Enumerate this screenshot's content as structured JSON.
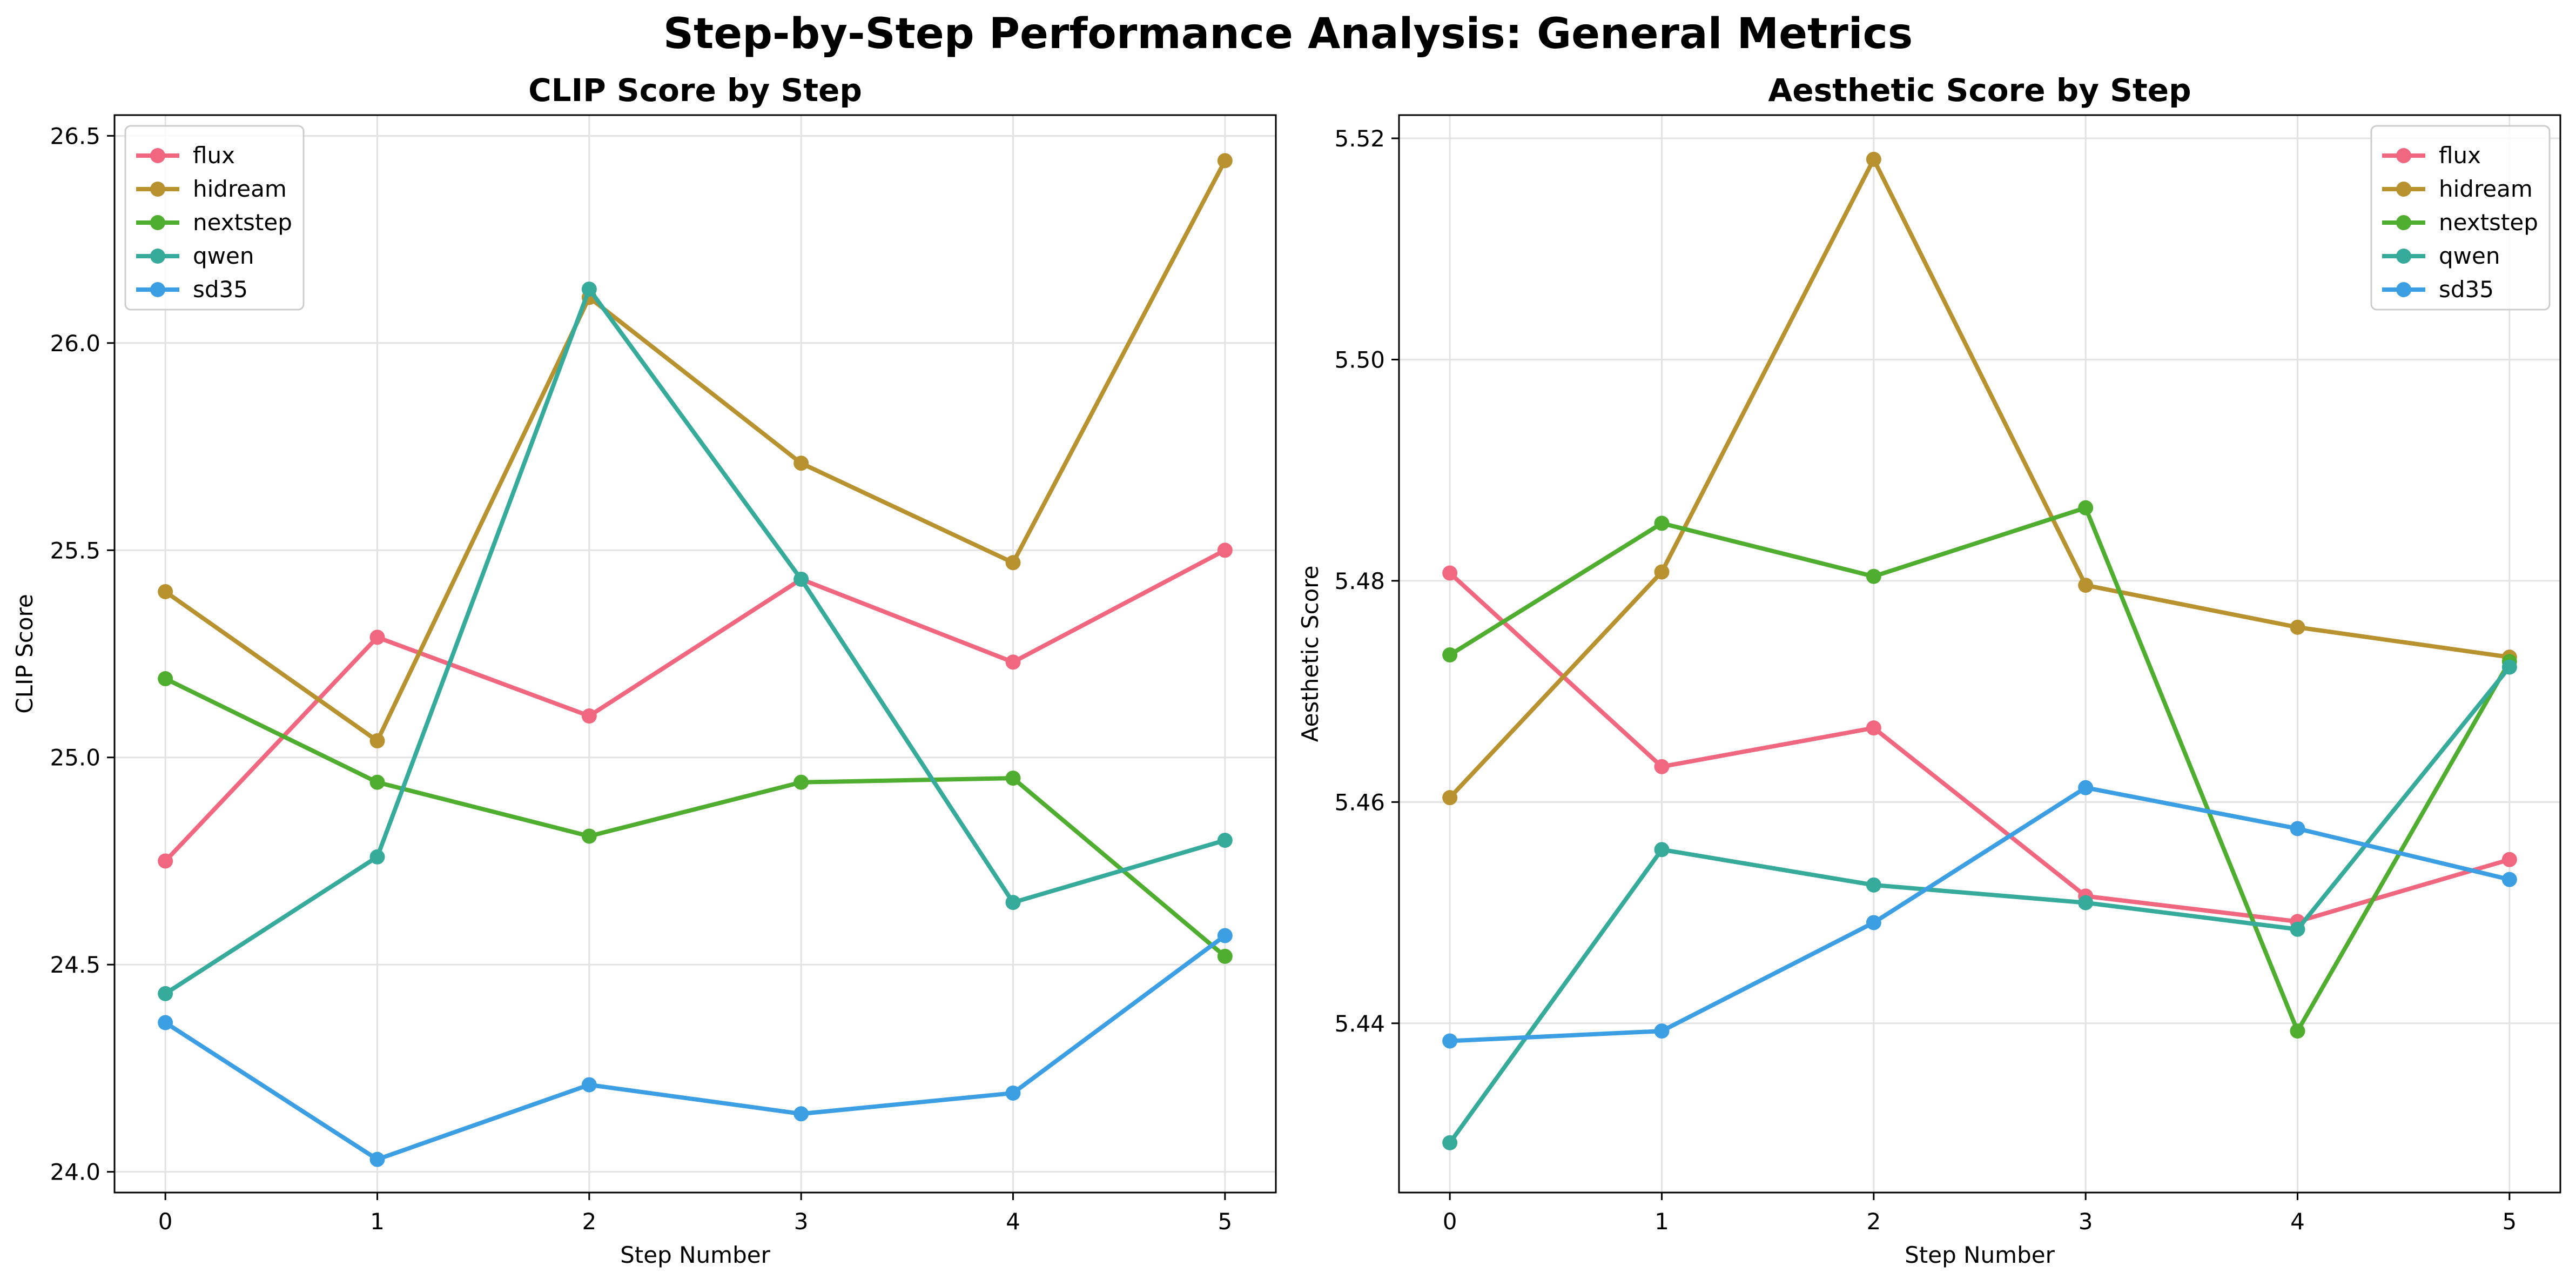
{
  "suptitle": "Step-by-Step Performance Analysis: General Metrics",
  "chart_data": [
    {
      "type": "line",
      "title": "CLIP Score by Step",
      "xlabel": "Step Number",
      "ylabel": "CLIP Score",
      "x": [
        0,
        1,
        2,
        3,
        4,
        5
      ],
      "x_ticks": [
        "0",
        "1",
        "2",
        "3",
        "4",
        "5"
      ],
      "xlim": [
        -0.24,
        5.24
      ],
      "ylim": [
        23.95,
        26.55
      ],
      "y_ticks": [
        "24.0",
        "24.5",
        "25.0",
        "25.5",
        "26.0",
        "26.5"
      ],
      "grid": true,
      "legend_position": "top-left",
      "series": [
        {
          "name": "flux",
          "color": "#f0677f",
          "values": [
            24.75,
            25.29,
            25.1,
            25.43,
            25.23,
            25.5
          ]
        },
        {
          "name": "hidream",
          "color": "#b99230",
          "values": [
            25.4,
            25.04,
            26.11,
            25.71,
            25.47,
            26.44
          ]
        },
        {
          "name": "nextstep",
          "color": "#4fae30",
          "values": [
            25.19,
            24.94,
            24.81,
            24.94,
            24.95,
            24.52
          ]
        },
        {
          "name": "qwen",
          "color": "#36ab9c",
          "values": [
            24.43,
            24.76,
            26.13,
            25.43,
            24.65,
            24.8
          ]
        },
        {
          "name": "sd35",
          "color": "#3c9fe4",
          "values": [
            24.36,
            24.03,
            24.21,
            24.14,
            24.19,
            24.57
          ]
        }
      ]
    },
    {
      "type": "line",
      "title": "Aesthetic Score by Step",
      "xlabel": "Step Number",
      "ylabel": "Aesthetic Score",
      "x": [
        0,
        1,
        2,
        3,
        4,
        5
      ],
      "x_ticks": [
        "0",
        "1",
        "2",
        "3",
        "4",
        "5"
      ],
      "xlim": [
        -0.24,
        5.24
      ],
      "ylim": [
        5.4247,
        5.5221
      ],
      "y_ticks": [
        "5.44",
        "5.46",
        "5.48",
        "5.50",
        "5.52"
      ],
      "grid": true,
      "legend_position": "top-right",
      "series": [
        {
          "name": "flux",
          "color": "#f0677f",
          "values": [
            5.4807,
            5.4632,
            5.4667,
            5.4515,
            5.4492,
            5.4548
          ]
        },
        {
          "name": "hidream",
          "color": "#b99230",
          "values": [
            5.4604,
            5.4808,
            5.5181,
            5.4796,
            5.4758,
            5.4731
          ]
        },
        {
          "name": "nextstep",
          "color": "#4fae30",
          "values": [
            5.4733,
            5.4852,
            5.4804,
            5.4866,
            5.4393,
            5.4727
          ]
        },
        {
          "name": "qwen",
          "color": "#36ab9c",
          "values": [
            5.4292,
            5.4557,
            5.4525,
            5.4509,
            5.4485,
            5.4722
          ]
        },
        {
          "name": "sd35",
          "color": "#3c9fe4",
          "values": [
            5.4384,
            5.4393,
            5.4491,
            5.4613,
            5.4576,
            5.453
          ]
        }
      ]
    }
  ]
}
